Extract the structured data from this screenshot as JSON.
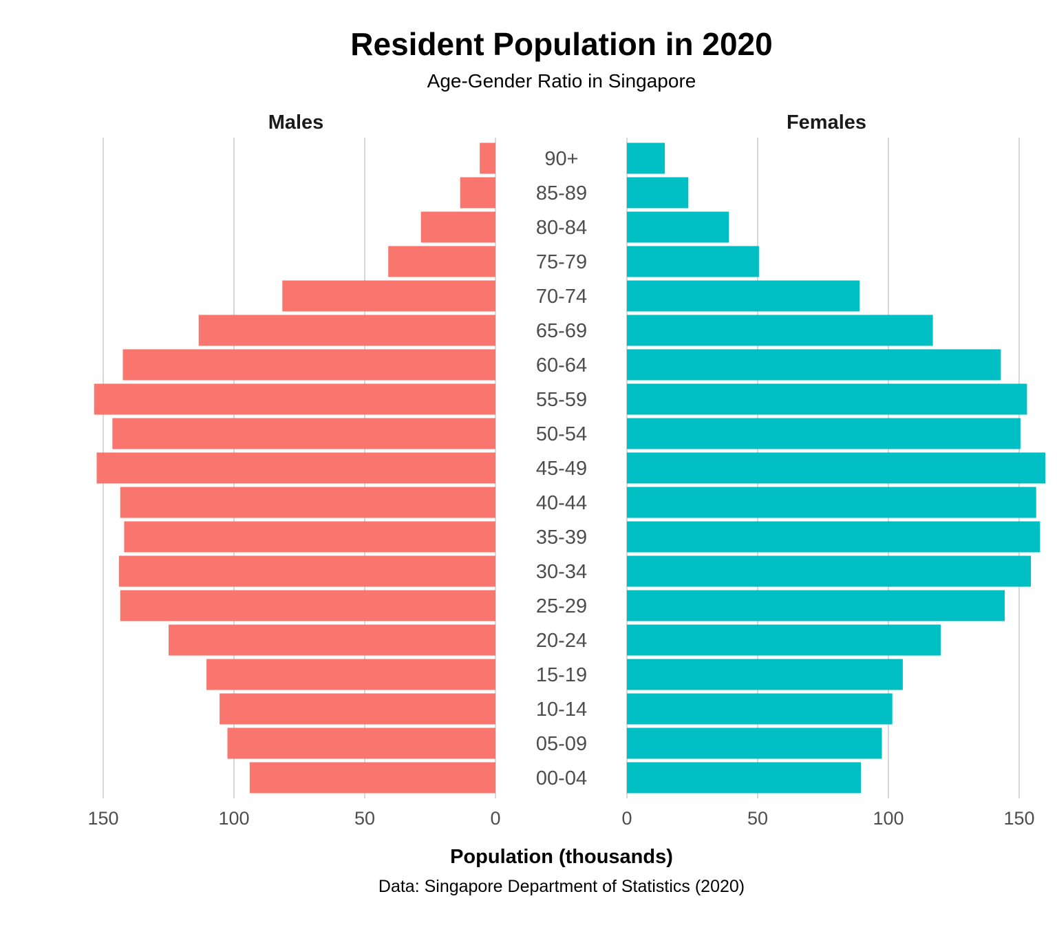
{
  "chart_data": {
    "type": "bar",
    "orientation": "horizontal",
    "layout": "population-pyramid",
    "title": "Resident Population in 2020",
    "subtitle": "Age-Gender Ratio in Singapore",
    "xlabel": "Population (thousands)",
    "caption": "Data: Singapore Department of Statistics (2020)",
    "categories": [
      "00-04",
      "05-09",
      "10-14",
      "15-19",
      "20-24",
      "25-29",
      "30-34",
      "35-39",
      "40-44",
      "45-49",
      "50-54",
      "55-59",
      "60-64",
      "65-69",
      "70-74",
      "75-79",
      "80-84",
      "85-89",
      "90+"
    ],
    "series": [
      {
        "name": "Males",
        "color": "#F8766D",
        "values": [
          94,
          102.5,
          105.5,
          110.5,
          125,
          143.5,
          144,
          142,
          143.5,
          152.5,
          146.5,
          153.5,
          142.5,
          113.5,
          81.5,
          41,
          28.5,
          13.5,
          6
        ]
      },
      {
        "name": "Females",
        "color": "#00BFC4",
        "values": [
          89.5,
          97.5,
          101.5,
          105.5,
          120,
          144.5,
          154.5,
          158,
          156.5,
          160,
          150.5,
          153,
          143,
          117,
          89,
          50.5,
          39,
          23.5,
          14.5
        ]
      }
    ],
    "xlim": [
      0,
      160
    ],
    "ticks": [
      0,
      50,
      100,
      150
    ],
    "grid": "vertical-major",
    "legend": "none"
  }
}
